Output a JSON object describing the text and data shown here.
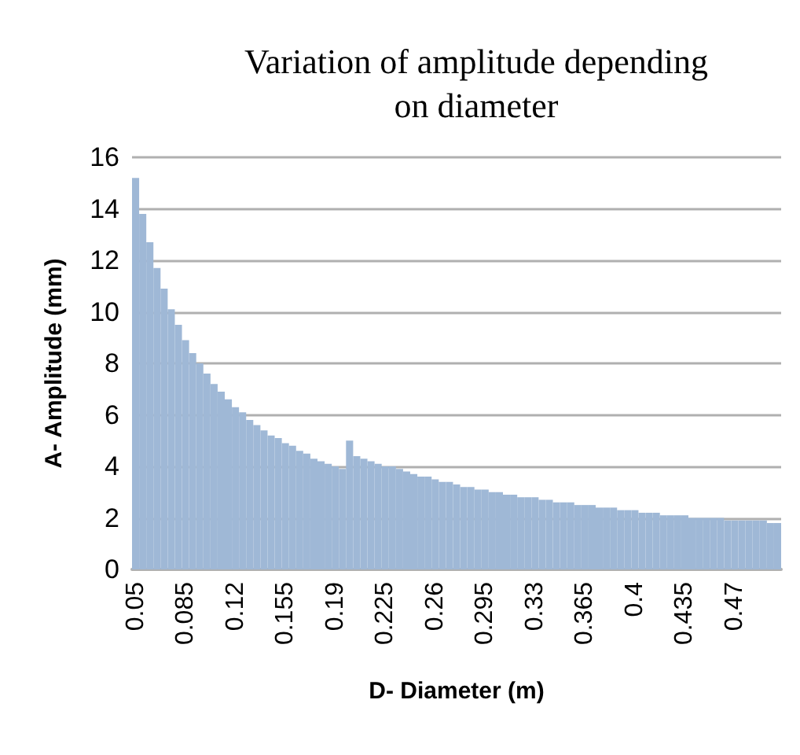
{
  "chart_data": {
    "type": "bar",
    "title": "Variation of amplitude depending on diameter",
    "xlabel": "D- Diameter (m)",
    "ylabel": "A- Amplitude (mm)",
    "categories": [
      "0.05",
      null,
      null,
      null,
      null,
      null,
      null,
      "0.085",
      null,
      null,
      null,
      null,
      null,
      null,
      "0.12",
      null,
      null,
      null,
      null,
      null,
      null,
      "0.155",
      null,
      null,
      null,
      null,
      null,
      null,
      "0.19",
      null,
      null,
      null,
      null,
      null,
      null,
      "0.225",
      null,
      null,
      null,
      null,
      null,
      null,
      "0.26",
      null,
      null,
      null,
      null,
      null,
      null,
      "0.295",
      null,
      null,
      null,
      null,
      null,
      null,
      "0.33",
      null,
      null,
      null,
      null,
      null,
      null,
      "0.365",
      null,
      null,
      null,
      null,
      null,
      null,
      "0.4",
      null,
      null,
      null,
      null,
      null,
      null,
      "0.435",
      null,
      null,
      null,
      null,
      null,
      null,
      "0.47",
      null,
      null,
      null,
      null,
      null,
      null
    ],
    "values": [
      15.2,
      13.8,
      12.7,
      11.7,
      10.9,
      10.1,
      9.5,
      8.9,
      8.4,
      8.0,
      7.6,
      7.2,
      6.9,
      6.6,
      6.3,
      6.1,
      5.8,
      5.6,
      5.4,
      5.2,
      5.1,
      4.9,
      4.8,
      4.6,
      4.5,
      4.3,
      4.2,
      4.1,
      4.0,
      3.9,
      5.0,
      4.4,
      4.3,
      4.2,
      4.1,
      4.0,
      4.0,
      3.9,
      3.8,
      3.7,
      3.6,
      3.6,
      3.5,
      3.4,
      3.4,
      3.3,
      3.2,
      3.2,
      3.1,
      3.1,
      3.0,
      3.0,
      2.9,
      2.9,
      2.8,
      2.8,
      2.8,
      2.7,
      2.7,
      2.6,
      2.6,
      2.6,
      2.5,
      2.5,
      2.5,
      2.4,
      2.4,
      2.4,
      2.3,
      2.3,
      2.3,
      2.2,
      2.2,
      2.2,
      2.1,
      2.1,
      2.1,
      2.1,
      2.0,
      2.0,
      2.0,
      2.0,
      2.0,
      1.9,
      1.9,
      1.9,
      1.9,
      1.9,
      1.9,
      1.8,
      1.8
    ],
    "color": "#9fb8d6",
    "ylim": [
      0,
      16
    ],
    "yticks": [
      0,
      2,
      4,
      6,
      8,
      10,
      12,
      14,
      16
    ],
    "grid": "y"
  }
}
